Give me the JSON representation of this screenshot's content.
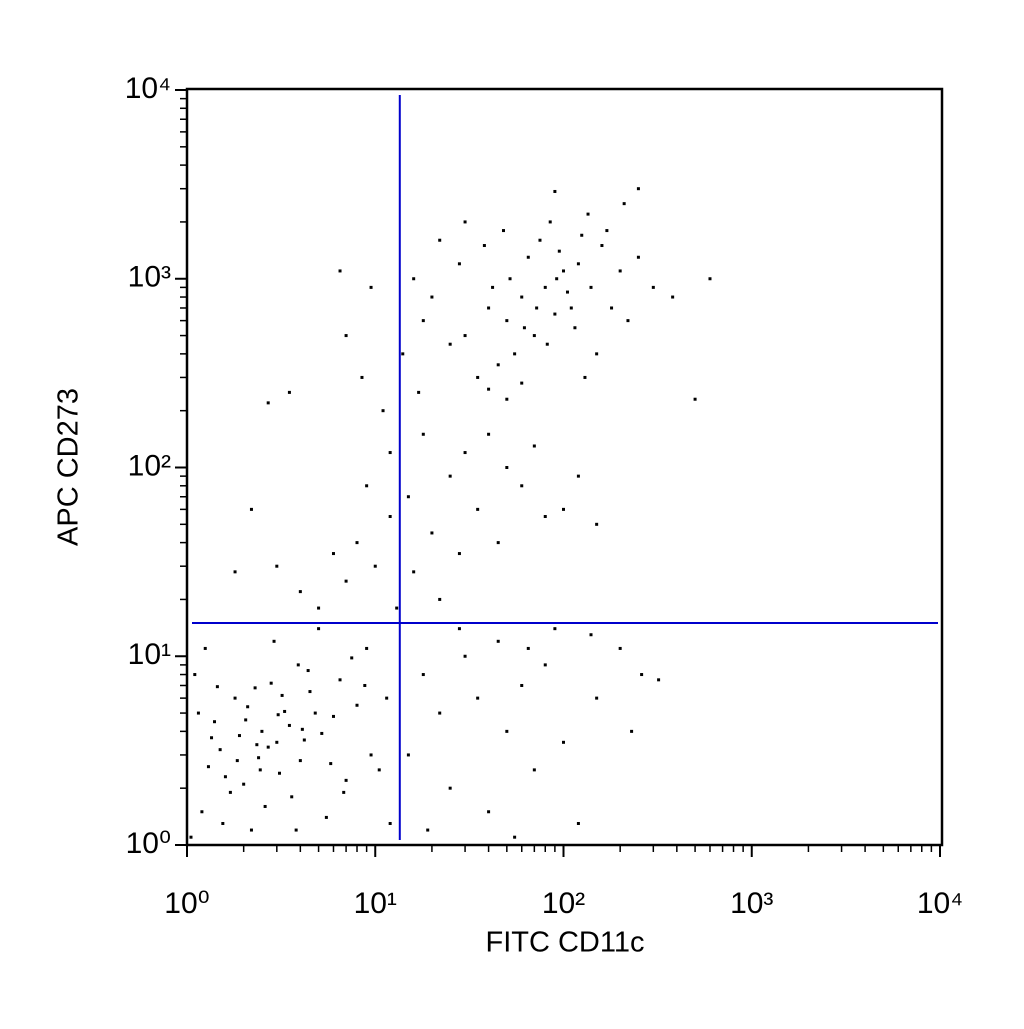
{
  "chart_data": {
    "type": "scatter",
    "x_label": "FITC CD11c",
    "y_label": "APC CD273",
    "log_x": true,
    "log_y": true,
    "xlim": [
      1,
      10000
    ],
    "ylim": [
      1,
      10000
    ],
    "xticks": [
      {
        "value": 1,
        "label": "10⁰"
      },
      {
        "value": 10,
        "label": "10¹"
      },
      {
        "value": 100,
        "label": "10²"
      },
      {
        "value": 1000,
        "label": "10³"
      },
      {
        "value": 10000,
        "label": "10⁴"
      }
    ],
    "yticks": [
      {
        "value": 1,
        "label": "10⁰"
      },
      {
        "value": 10,
        "label": "10¹"
      },
      {
        "value": 100,
        "label": "10²"
      },
      {
        "value": 1000,
        "label": "10³"
      },
      {
        "value": 10000,
        "label": "10⁴"
      }
    ],
    "xminorticks": [
      2,
      3,
      4,
      5,
      6,
      7,
      8,
      9,
      20,
      30,
      40,
      50,
      60,
      70,
      80,
      90,
      200,
      300,
      400,
      500,
      600,
      700,
      800,
      900,
      2000,
      3000,
      4000,
      5000,
      6000,
      7000,
      8000,
      9000
    ],
    "yminorticks": [
      2,
      3,
      4,
      5,
      6,
      7,
      8,
      9,
      20,
      30,
      40,
      50,
      60,
      70,
      80,
      90,
      200,
      300,
      400,
      500,
      600,
      700,
      800,
      900,
      2000,
      3000,
      4000,
      5000,
      6000,
      7000,
      8000,
      9000
    ],
    "color": "#000000",
    "quadrant_x": 13.5,
    "quadrant_y": 15,
    "quadrant_color": "#0000cc",
    "x": [
      1.2,
      1.5,
      2.0,
      2.5,
      3.0,
      3.3,
      1.8,
      2.2,
      4.0,
      4.5,
      5.2,
      6.0,
      7.0,
      1.1,
      1.4,
      2.8,
      3.6,
      2.4,
      1.7,
      3.9,
      5.5,
      8.0,
      9.5,
      1.3,
      2.1,
      2.7,
      3.1,
      3.5,
      4.2,
      1.9,
      1.6,
      2.3,
      4.8,
      6.5,
      7.5,
      1.25,
      2.9,
      5.0,
      1.05,
      1.15,
      10.5,
      11.5,
      12,
      2.6,
      3.8,
      4.4,
      6.8,
      8.8,
      1.35,
      2.05,
      3.2,
      1.55,
      5.8,
      2.45,
      3.05,
      1.85,
      4.1,
      2.35,
      1.45,
      9.0,
      5,
      7,
      8,
      10,
      12,
      15,
      20,
      25,
      30,
      18,
      9,
      6,
      4,
      3,
      2.2,
      1.8,
      40,
      50,
      60,
      35,
      28,
      45,
      70,
      80,
      100,
      120,
      150,
      22,
      16,
      13,
      11,
      8.5,
      7,
      9.5,
      6.5,
      3.5,
      2.7,
      14,
      17,
      12,
      30,
      40,
      50,
      60,
      70,
      80,
      90,
      100,
      110,
      55,
      45,
      35,
      25,
      20,
      28,
      38,
      48,
      65,
      75,
      85,
      95,
      120,
      140,
      160,
      180,
      200,
      220,
      150,
      130,
      60,
      50,
      40,
      18,
      16,
      22,
      30,
      42,
      52,
      62,
      72,
      82,
      92,
      105,
      115,
      125,
      135,
      170,
      210,
      250,
      300,
      380,
      500,
      600,
      250,
      90,
      15,
      18,
      22,
      25,
      30,
      35,
      40,
      45,
      50,
      60,
      70,
      80,
      100,
      120,
      150,
      200,
      230,
      260,
      320,
      140,
      90,
      55,
      28,
      19,
      65
    ],
    "values": [
      1.5,
      3.2,
      2.1,
      4.0,
      3.5,
      5.1,
      6.0,
      1.2,
      2.8,
      6.5,
      3.9,
      4.8,
      2.2,
      8.0,
      4.5,
      7.2,
      1.8,
      2.9,
      1.9,
      9.0,
      1.4,
      5.5,
      3.0,
      2.6,
      5.4,
      3.3,
      2.4,
      4.3,
      3.6,
      3.8,
      2.3,
      6.8,
      5.0,
      7.5,
      9.8,
      11,
      12,
      14,
      1.1,
      5.0,
      2.5,
      6.0,
      1.3,
      1.6,
      1.2,
      8.4,
      1.9,
      7.0,
      3.7,
      4.6,
      6.2,
      1.3,
      2.7,
      2.5,
      4.9,
      2.8,
      4.1,
      3.4,
      6.9,
      11,
      18,
      25,
      40,
      30,
      55,
      70,
      45,
      90,
      120,
      150,
      80,
      35,
      22,
      30,
      60,
      28,
      150,
      100,
      80,
      60,
      35,
      40,
      130,
      55,
      60,
      90,
      50,
      20,
      28,
      18,
      200,
      300,
      500,
      900,
      1100,
      250,
      220,
      400,
      250,
      120,
      500,
      700,
      600,
      800,
      500,
      900,
      650,
      1100,
      700,
      400,
      350,
      300,
      450,
      800,
      1200,
      1500,
      1800,
      1300,
      1600,
      2000,
      1400,
      1200,
      900,
      1500,
      700,
      1100,
      600,
      400,
      300,
      280,
      230,
      260,
      600,
      1000,
      1600,
      2000,
      900,
      1000,
      550,
      700,
      450,
      1000,
      850,
      550,
      1700,
      2200,
      1800,
      2500,
      1300,
      900,
      800,
      230,
      1000,
      3000,
      2900,
      3,
      8,
      5,
      2,
      10,
      6,
      1.5,
      12,
      4,
      7,
      2.5,
      9,
      3.5,
      1.3,
      6,
      11,
      4,
      8,
      7.5,
      13,
      14,
      1.1,
      14,
      1.2,
      11
    ]
  }
}
